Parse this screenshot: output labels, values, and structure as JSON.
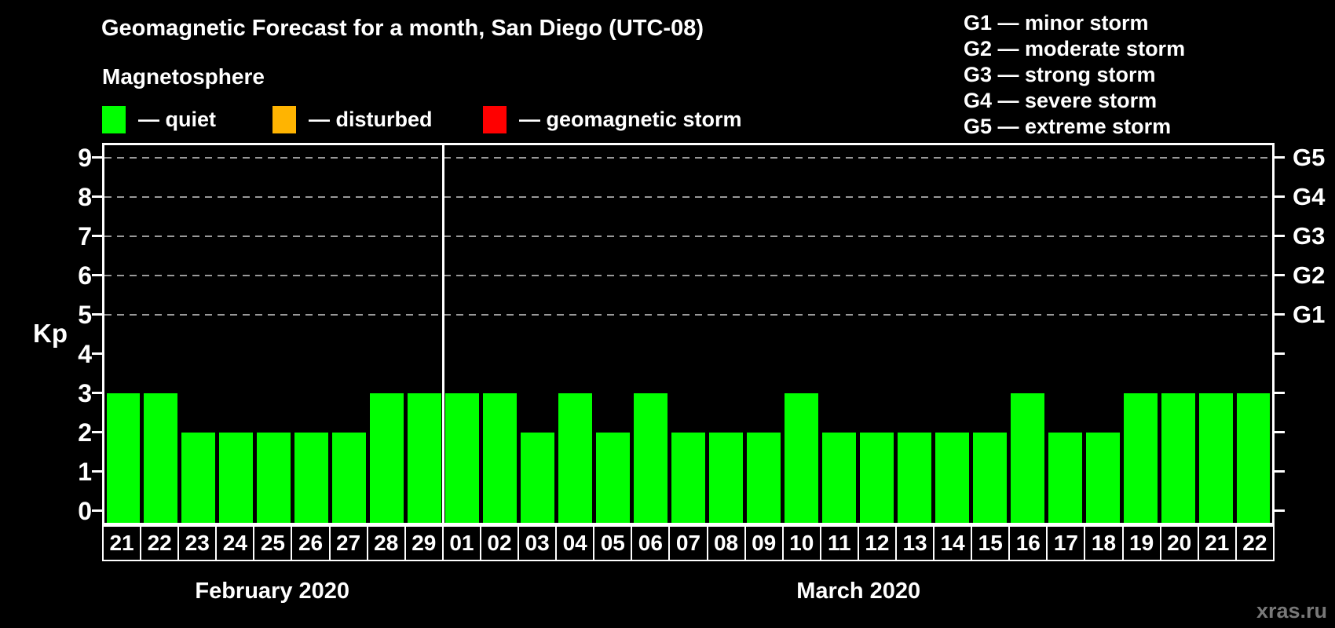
{
  "title": "Geomagnetic Forecast for a month, San Diego (UTC-08)",
  "watermark": "xras.ru",
  "magnetosphere_legend": {
    "heading": "Magnetosphere",
    "items": [
      {
        "name": "quiet",
        "label": "— quiet",
        "color": "#00ff00"
      },
      {
        "name": "disturbed",
        "label": "— disturbed",
        "color": "#ffb401"
      },
      {
        "name": "geomagnetic-storm",
        "label": "— geomagnetic storm",
        "color": "#ff0000"
      }
    ]
  },
  "g_scale_legend": {
    "lines": [
      "G1 — minor storm",
      "G2 — moderate storm",
      "G3 — strong storm",
      "G4 — severe storm",
      "G5 — extreme storm"
    ]
  },
  "chart_data": {
    "type": "bar",
    "title": "Geomagnetic Forecast for a month, San Diego (UTC-08)",
    "ylabel": "Kp",
    "ylim": [
      0,
      9
    ],
    "yticks": [
      0,
      1,
      2,
      3,
      4,
      5,
      6,
      7,
      8,
      9
    ],
    "grid_levels_kp": [
      5,
      6,
      7,
      8,
      9
    ],
    "grid_style": "dashed",
    "legend_position": "top",
    "bar_color": "#00ff00",
    "gridline_color": "#999999",
    "right_axis": [
      {
        "label": "G1",
        "kp": 5
      },
      {
        "label": "G2",
        "kp": 6
      },
      {
        "label": "G3",
        "kp": 7
      },
      {
        "label": "G4",
        "kp": 8
      },
      {
        "label": "G5",
        "kp": 9
      }
    ],
    "months": [
      {
        "label": "February 2020",
        "days": [
          "21",
          "22",
          "23",
          "24",
          "25",
          "26",
          "27",
          "28",
          "29"
        ],
        "kp_values": [
          3,
          3,
          2,
          2,
          2,
          2,
          2,
          3,
          3
        ]
      },
      {
        "label": "March 2020",
        "days": [
          "01",
          "02",
          "03",
          "04",
          "05",
          "06",
          "07",
          "08",
          "09",
          "10",
          "11",
          "12",
          "13",
          "14",
          "15",
          "16",
          "17",
          "18",
          "19",
          "20",
          "21",
          "22"
        ],
        "kp_values": [
          3,
          3,
          2,
          3,
          2,
          3,
          2,
          2,
          2,
          3,
          2,
          2,
          2,
          2,
          2,
          3,
          2,
          2,
          3,
          3,
          3,
          3
        ]
      }
    ]
  }
}
